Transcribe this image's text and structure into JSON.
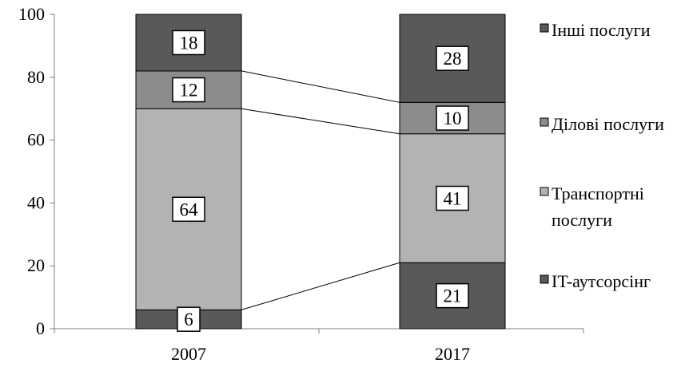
{
  "chart_data": {
    "type": "bar",
    "stacked": true,
    "categories": [
      "2007",
      "2017"
    ],
    "series": [
      {
        "name": "IT-аутсорсінг",
        "values": [
          6,
          21
        ],
        "color": "#595959"
      },
      {
        "name": "Транспортні послуги",
        "values": [
          64,
          41
        ],
        "color": "#b3b3b3"
      },
      {
        "name": "Ділові послуги",
        "values": [
          12,
          10
        ],
        "color": "#8c8c8c"
      },
      {
        "name": "Інші послуги",
        "values": [
          18,
          28
        ],
        "color": "#595959"
      }
    ],
    "data_labels": [
      [
        "6",
        "64",
        "12",
        "18"
      ],
      [
        "21",
        "41",
        "10",
        "28"
      ]
    ],
    "y_ticks": [
      "0",
      "20",
      "40",
      "60",
      "80",
      "100"
    ],
    "ylim": [
      0,
      100
    ],
    "series_lines": true,
    "grid": false,
    "legend_position": "right",
    "legend": [
      {
        "series": 3,
        "lines": [
          "Інші послуги"
        ]
      },
      {
        "series": 2,
        "lines": [
          "Ділові послуги"
        ]
      },
      {
        "series": 1,
        "lines": [
          "Транспортні",
          "послуги"
        ]
      },
      {
        "series": 0,
        "lines": [
          "IT-аутсорсінг"
        ]
      }
    ]
  }
}
